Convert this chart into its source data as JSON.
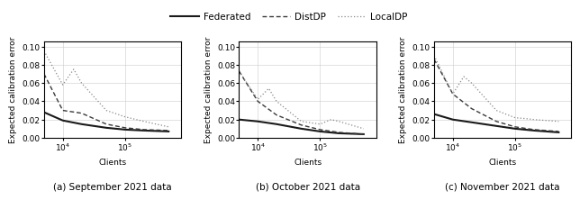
{
  "subplots": [
    {
      "caption": "(a) September 2021 data",
      "federated": [
        [
          5000,
          10000,
          20000,
          50000,
          100000,
          200000,
          500000
        ],
        [
          0.028,
          0.019,
          0.015,
          0.011,
          0.009,
          0.008,
          0.007
        ]
      ],
      "distdp": [
        [
          5000,
          10000,
          20000,
          50000,
          100000,
          200000,
          500000
        ],
        [
          0.07,
          0.03,
          0.027,
          0.015,
          0.011,
          0.009,
          0.008
        ]
      ],
      "localdp": [
        [
          5000,
          10000,
          15000,
          20000,
          50000,
          100000,
          200000,
          500000
        ],
        [
          0.095,
          0.058,
          0.075,
          0.06,
          0.03,
          0.023,
          0.018,
          0.012
        ]
      ]
    },
    {
      "caption": "(b) October 2021 data",
      "federated": [
        [
          5000,
          10000,
          20000,
          50000,
          100000,
          200000,
          500000
        ],
        [
          0.02,
          0.018,
          0.015,
          0.01,
          0.007,
          0.005,
          0.004
        ]
      ],
      "distdp": [
        [
          5000,
          10000,
          20000,
          50000,
          100000,
          200000,
          500000
        ],
        [
          0.073,
          0.04,
          0.025,
          0.014,
          0.009,
          0.006,
          0.004
        ]
      ],
      "localdp": [
        [
          5000,
          10000,
          15000,
          20000,
          50000,
          100000,
          150000,
          200000,
          500000
        ],
        [
          0.073,
          0.042,
          0.054,
          0.04,
          0.018,
          0.015,
          0.02,
          0.018,
          0.01
        ]
      ]
    },
    {
      "caption": "(c) November 2021 data",
      "federated": [
        [
          5000,
          10000,
          20000,
          50000,
          100000,
          200000,
          500000
        ],
        [
          0.026,
          0.02,
          0.017,
          0.013,
          0.01,
          0.008,
          0.006
        ]
      ],
      "distdp": [
        [
          5000,
          10000,
          20000,
          50000,
          100000,
          200000,
          500000
        ],
        [
          0.086,
          0.048,
          0.032,
          0.018,
          0.012,
          0.009,
          0.007
        ]
      ],
      "localdp": [
        [
          5000,
          10000,
          15000,
          20000,
          50000,
          100000,
          150000,
          200000,
          500000
        ],
        [
          0.09,
          0.048,
          0.067,
          0.06,
          0.03,
          0.022,
          0.021,
          0.02,
          0.018
        ]
      ]
    }
  ],
  "ylabel": "Expected calibration error",
  "xlabel": "Clients",
  "ylim": [
    0.0,
    0.105
  ],
  "yticks": [
    0.0,
    0.02,
    0.04,
    0.06,
    0.08,
    0.1
  ],
  "xlim_log": [
    5000,
    800000
  ],
  "line_color_federated": "#1a1a1a",
  "line_color_distdp": "#3a3a3a",
  "line_color_localdp": "#888888",
  "legend_labels": [
    "Federated",
    "DistDP",
    "LocalDP"
  ],
  "federated_lw": 1.5,
  "distdp_lw": 1.0,
  "localdp_lw": 0.9,
  "fontsize_label": 6.5,
  "fontsize_caption": 7.5,
  "fontsize_legend": 7.5,
  "fontsize_tick": 6.5
}
